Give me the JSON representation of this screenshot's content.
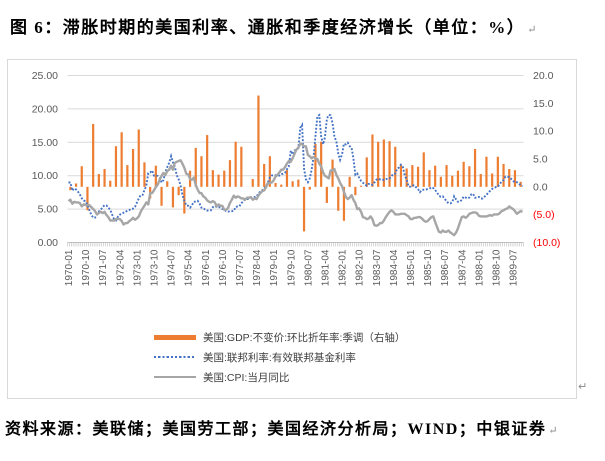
{
  "page": {
    "title": "图 6：滞胀时期的美国利率、通胀和季度经济增长（单位：%）",
    "source": "资料来源：美联储；美国劳工部；美国经济分析局；WIND；中银证券",
    "paragraph_mark": "↵"
  },
  "chart_data": {
    "type": "combo",
    "title": "滞胀时期的美国利率、通胀和季度经济增长",
    "unit": "%",
    "grid": true,
    "legend_position": "bottom-left-stacked",
    "x_frequency": "monthly",
    "x_start": "1970-01",
    "x_end": "1989-12",
    "x_tick_interval_months": 9,
    "x_tick_labels": [
      "1970-01",
      "1970-10",
      "1971-07",
      "1972-04",
      "1973-01",
      "1973-10",
      "1974-07",
      "1975-04",
      "1976-01",
      "1976-10",
      "1977-07",
      "1978-04",
      "1979-01",
      "1979-10",
      "1980-07",
      "1981-04",
      "1982-01",
      "1982-10",
      "1983-07",
      "1984-04",
      "1985-01",
      "1985-10",
      "1986-07",
      "1987-04",
      "1988-01",
      "1988-10",
      "1989-07"
    ],
    "left_axis": {
      "min": 0,
      "max": 25,
      "ticks": [
        "25.00",
        "20.00",
        "15.00",
        "10.00",
        "5.00",
        "0.00"
      ],
      "color": "#595959"
    },
    "right_axis": {
      "min": -10,
      "max": 20,
      "ticks": [
        "20.0",
        "15.0",
        "10.0",
        "5.0",
        "0.0",
        "(5.0)",
        "(10.0)"
      ],
      "color": "#595959",
      "negative_color": "#ff0000"
    },
    "grid_color": "#d9d9d9",
    "tick_color": "#bfbfbf",
    "series": [
      {
        "name": "美国:GDP:不变价:环比折年率:季调（右轴）",
        "type": "bar",
        "axis": "right",
        "color": "#ED7D31",
        "frequency": "quarterly",
        "values": [
          -0.6,
          0.6,
          3.7,
          -4.2,
          11.3,
          2.3,
          3.2,
          1.1,
          7.3,
          9.8,
          3.9,
          6.8,
          10.3,
          4.4,
          -2.1,
          3.8,
          -3.4,
          1.0,
          -3.7,
          -1.5,
          -4.8,
          2.9,
          7.0,
          5.5,
          9.3,
          3.0,
          2.2,
          2.9,
          4.8,
          8.1,
          7.2,
          0.0,
          1.4,
          16.4,
          4.1,
          5.5,
          0.7,
          0.4,
          3.0,
          1.0,
          1.3,
          -8.0,
          -0.5,
          7.7,
          8.1,
          -2.9,
          4.9,
          -4.3,
          -6.1,
          1.8,
          -1.5,
          0.2,
          5.3,
          9.4,
          8.1,
          8.5,
          8.2,
          7.2,
          3.9,
          3.3,
          3.9,
          3.6,
          6.2,
          3.0,
          3.8,
          1.8,
          3.9,
          2.0,
          2.9,
          4.5,
          3.7,
          6.8,
          2.3,
          5.4,
          2.4,
          5.4,
          4.1,
          3.2,
          3.0,
          0.9
        ]
      },
      {
        "name": "美国:联邦利率:有效联邦基金利率",
        "type": "line",
        "line_style": "dotted",
        "axis": "left",
        "color": "#4472C4",
        "frequency": "monthly",
        "values": [
          8.98,
          8.98,
          7.76,
          8.1,
          7.95,
          7.61,
          7.21,
          6.62,
          6.29,
          6.2,
          5.6,
          4.9,
          4.14,
          3.72,
          3.71,
          4.15,
          4.63,
          4.91,
          5.31,
          5.57,
          5.55,
          5.2,
          4.91,
          4.14,
          3.5,
          3.29,
          3.83,
          4.17,
          4.27,
          4.46,
          4.55,
          4.8,
          4.87,
          5.04,
          5.06,
          5.33,
          5.94,
          6.58,
          7.09,
          7.12,
          7.84,
          8.49,
          10.4,
          10.5,
          10.78,
          10.01,
          10.03,
          9.95,
          9.65,
          8.97,
          9.35,
          10.51,
          11.31,
          11.93,
          12.92,
          12.01,
          11.34,
          10.06,
          9.45,
          8.53,
          7.13,
          6.24,
          5.54,
          5.49,
          5.22,
          5.55,
          6.1,
          6.14,
          6.24,
          5.82,
          5.22,
          5.2,
          4.87,
          4.77,
          4.84,
          4.82,
          5.29,
          5.48,
          5.31,
          5.29,
          5.25,
          5.03,
          4.95,
          4.65,
          4.61,
          4.68,
          4.69,
          4.73,
          5.35,
          5.39,
          5.42,
          5.9,
          6.14,
          6.47,
          6.51,
          6.56,
          6.7,
          6.78,
          6.79,
          6.89,
          7.36,
          7.6,
          7.81,
          8.04,
          8.45,
          8.96,
          9.76,
          10.03,
          10.07,
          10.06,
          10.09,
          10.01,
          10.24,
          10.29,
          10.47,
          10.94,
          11.43,
          13.77,
          13.18,
          13.78,
          13.82,
          14.13,
          17.19,
          17.61,
          10.98,
          9.47,
          9.03,
          9.61,
          10.87,
          12.81,
          15.85,
          18.9,
          19.08,
          15.93,
          14.7,
          15.72,
          18.52,
          19.1,
          19.04,
          17.82,
          15.87,
          15.08,
          13.31,
          12.37,
          13.22,
          14.78,
          14.68,
          14.94,
          14.45,
          14.15,
          12.59,
          10.12,
          10.31,
          9.71,
          9.2,
          8.95,
          8.68,
          8.51,
          8.77,
          8.8,
          8.63,
          8.98,
          9.37,
          9.56,
          9.45,
          9.48,
          9.34,
          9.47,
          9.56,
          9.59,
          9.91,
          10.29,
          10.32,
          11.06,
          11.23,
          11.64,
          11.3,
          9.99,
          9.43,
          8.38,
          8.35,
          8.5,
          8.58,
          8.27,
          7.97,
          7.53,
          7.88,
          7.9,
          7.92,
          7.99,
          8.05,
          8.27,
          8.14,
          7.86,
          7.48,
          6.99,
          6.85,
          6.92,
          6.56,
          6.17,
          5.89,
          5.85,
          6.04,
          6.91,
          6.43,
          6.1,
          6.13,
          6.37,
          6.85,
          6.73,
          6.58,
          6.73,
          7.22,
          7.29,
          6.69,
          6.77,
          6.83,
          6.58,
          6.58,
          6.87,
          7.09,
          7.51,
          7.75,
          8.01,
          8.19,
          8.3,
          8.35,
          8.76,
          9.12,
          9.36,
          9.85,
          9.84,
          9.81,
          9.53,
          9.24,
          8.99,
          9.02,
          8.84,
          8.55,
          8.45
        ]
      },
      {
        "name": "美国:CPI:当月同比",
        "type": "line",
        "line_style": "solid",
        "axis": "left",
        "color": "#A6A6A6",
        "frequency": "monthly",
        "values": [
          6.2,
          6.4,
          5.8,
          6.1,
          6.0,
          6.0,
          5.9,
          5.4,
          5.7,
          5.6,
          5.6,
          5.6,
          5.3,
          5.0,
          4.7,
          4.2,
          4.4,
          4.6,
          4.4,
          4.6,
          4.1,
          3.8,
          3.3,
          3.3,
          3.3,
          3.5,
          3.5,
          3.5,
          3.2,
          2.7,
          2.9,
          2.9,
          3.2,
          3.4,
          3.7,
          3.4,
          3.6,
          3.9,
          4.6,
          5.1,
          5.5,
          6.0,
          5.7,
          7.4,
          7.4,
          7.8,
          8.3,
          8.7,
          9.4,
          10.0,
          10.4,
          10.1,
          10.7,
          10.9,
          11.5,
          10.9,
          11.9,
          12.1,
          12.2,
          12.3,
          11.8,
          11.2,
          10.3,
          10.2,
          9.5,
          9.4,
          9.7,
          8.6,
          7.9,
          7.4,
          7.4,
          6.9,
          6.7,
          6.3,
          6.1,
          6.0,
          6.2,
          6.0,
          5.4,
          5.7,
          5.5,
          5.5,
          4.9,
          4.9,
          5.2,
          5.9,
          6.4,
          7.0,
          6.7,
          6.9,
          6.8,
          6.6,
          6.6,
          6.4,
          6.7,
          6.7,
          6.8,
          6.4,
          6.6,
          6.5,
          7.0,
          7.4,
          7.7,
          7.8,
          8.3,
          8.9,
          8.9,
          9.0,
          9.3,
          9.9,
          10.1,
          10.5,
          10.9,
          10.9,
          11.3,
          11.8,
          12.2,
          12.1,
          12.6,
          13.3,
          13.9,
          14.2,
          14.8,
          14.7,
          14.4,
          14.4,
          13.1,
          12.9,
          12.6,
          12.8,
          12.6,
          12.5,
          11.8,
          11.4,
          10.5,
          10.0,
          9.8,
          9.6,
          10.8,
          10.8,
          11.0,
          10.1,
          9.6,
          8.9,
          8.4,
          7.6,
          6.8,
          6.5,
          6.7,
          7.1,
          6.4,
          5.9,
          5.0,
          5.1,
          4.6,
          3.8,
          3.7,
          3.5,
          3.6,
          3.9,
          3.5,
          2.6,
          2.5,
          2.6,
          2.9,
          2.9,
          3.3,
          3.8,
          4.2,
          4.6,
          4.8,
          4.6,
          4.2,
          4.2,
          4.2,
          4.3,
          4.3,
          4.3,
          4.1,
          3.9,
          3.5,
          3.5,
          3.7,
          3.7,
          3.8,
          3.8,
          3.6,
          3.3,
          3.1,
          3.2,
          3.5,
          3.8,
          3.9,
          3.1,
          2.3,
          1.6,
          1.5,
          1.8,
          1.6,
          1.6,
          1.8,
          1.5,
          1.3,
          1.1,
          1.5,
          2.1,
          3.0,
          3.8,
          3.9,
          3.7,
          3.9,
          4.3,
          4.4,
          4.5,
          4.5,
          4.4,
          4.0,
          3.9,
          3.9,
          3.9,
          3.9,
          4.0,
          4.1,
          4.0,
          4.2,
          4.2,
          4.2,
          4.4,
          4.7,
          4.8,
          5.0,
          5.1,
          5.4,
          5.2,
          5.0,
          4.7,
          4.3,
          4.5,
          4.7,
          4.6
        ]
      }
    ]
  }
}
